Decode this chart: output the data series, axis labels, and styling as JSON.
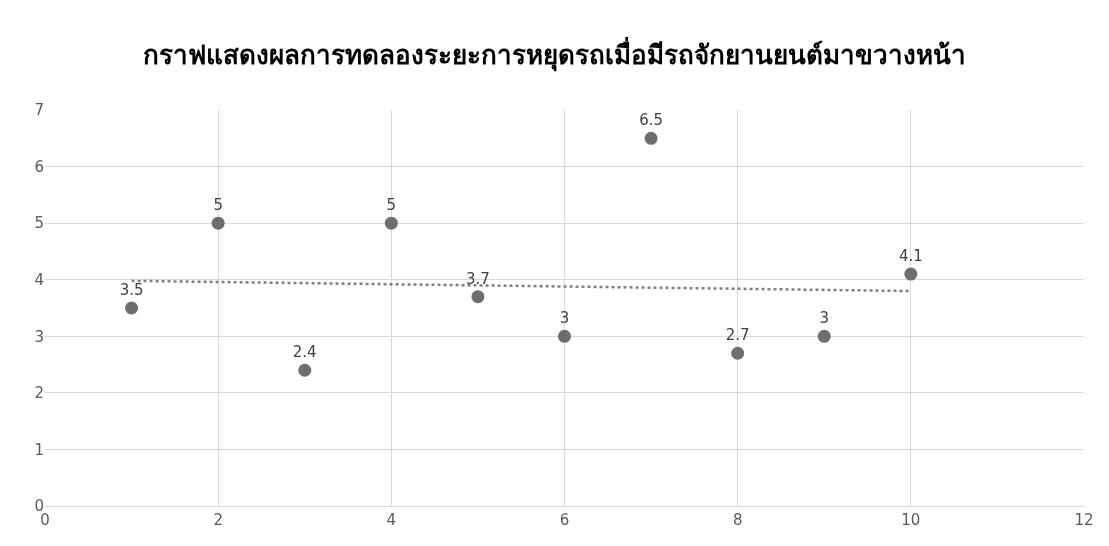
{
  "chart_data": {
    "type": "scatter",
    "title": "กราฟแสดงผลการทดลองระยะการหยุดรถเมื่อมีรถจักยานยนต์มาขวางหน้า",
    "x": [
      1,
      2,
      3,
      4,
      5,
      6,
      7,
      8,
      9,
      10
    ],
    "series": [
      {
        "color": "#6e6e6e",
        "marker": "circle",
        "values": [
          3.5,
          5,
          2.4,
          5,
          3.7,
          3,
          6.5,
          2.7,
          3,
          4.1
        ],
        "value_labels": [
          "3.5",
          "5",
          "2.4",
          "5",
          "3.7",
          "3",
          "6.5",
          "2.7",
          "3",
          "4.1"
        ]
      },
      {
        "type": "line",
        "color": "#7f7f7f",
        "marker": "none",
        "line_style": "dotted",
        "x": [
          1,
          10
        ],
        "values": [
          3.98,
          3.8
        ]
      }
    ],
    "xlim": [
      0,
      12
    ],
    "xticks": [
      0,
      2,
      4,
      6,
      8,
      10,
      12
    ],
    "ylim": [
      0,
      7
    ],
    "yticks": [
      0,
      1,
      2,
      3,
      4,
      5,
      6,
      7
    ],
    "grid": true
  }
}
